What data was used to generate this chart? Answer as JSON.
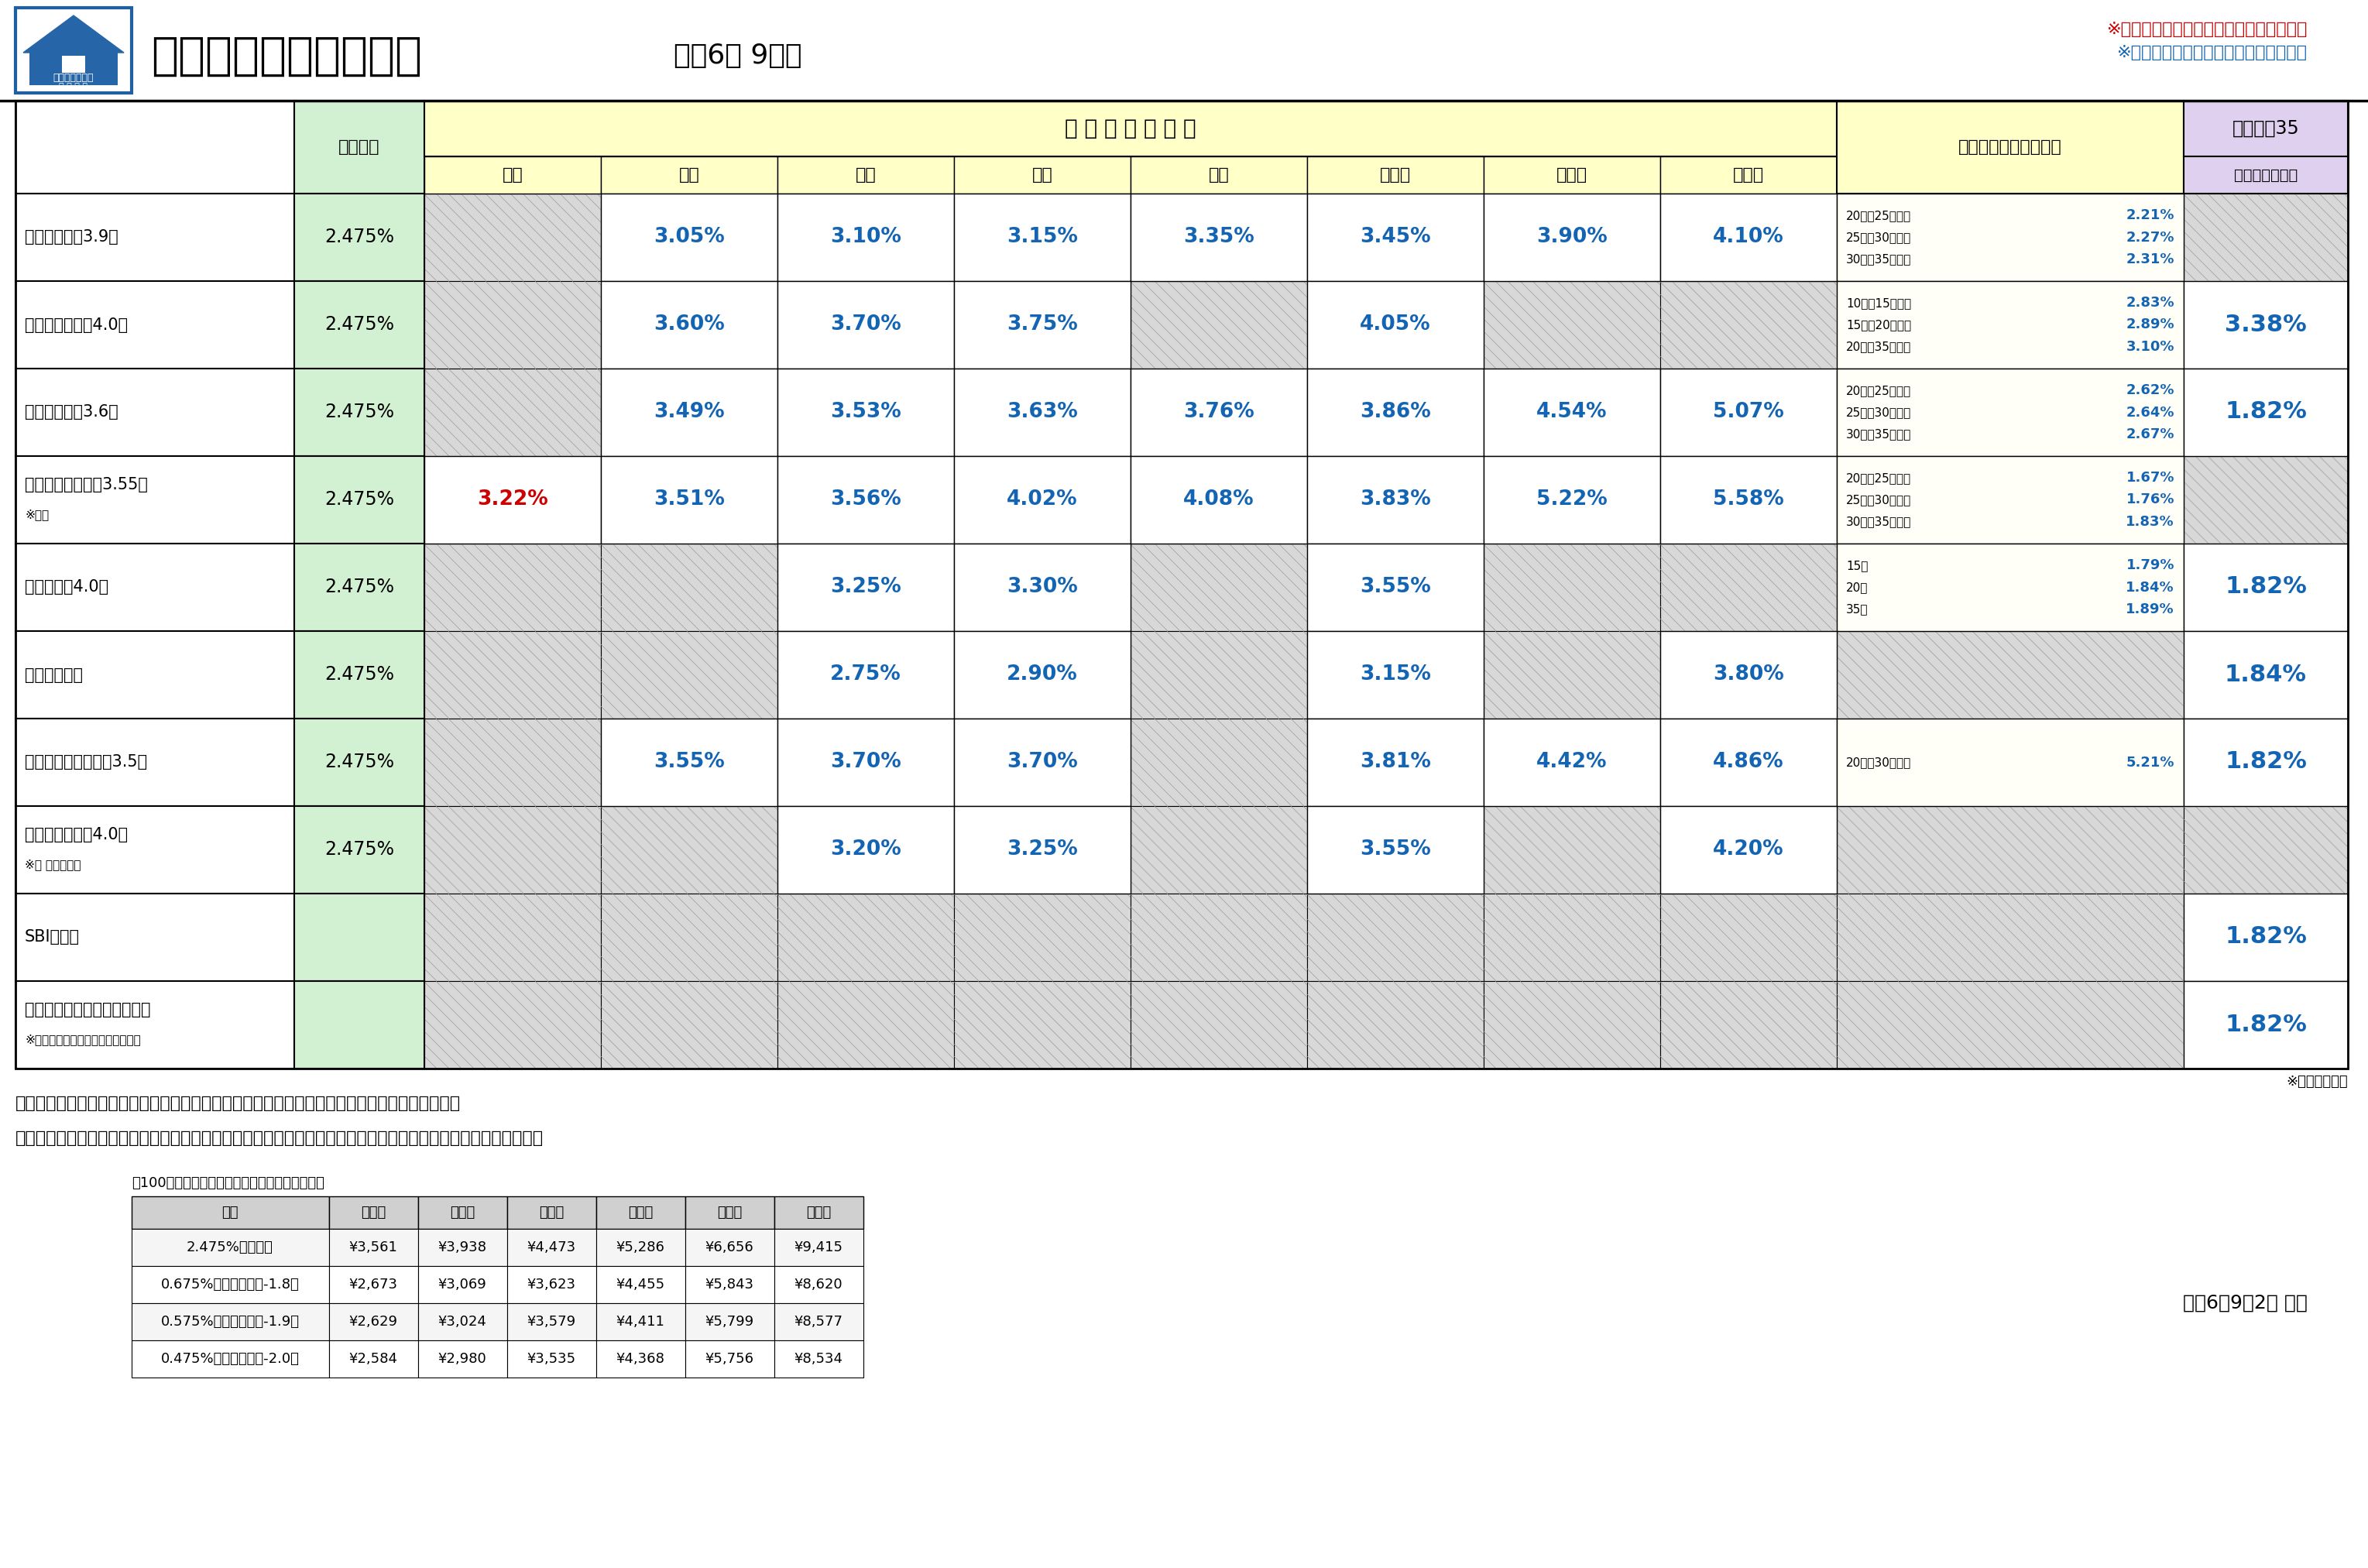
{
  "title": "住宅ローン金利一覧表",
  "subtitle": "令和6年 9月度",
  "note_red": "※赤文字は前月より上昇している金利です",
  "note_blue": "※青文字は前月より下げている金利です",
  "footer_note": "※団信加入金利",
  "bottom_note1": "＊上記記載内容は、基準金利です。金利優遇など、詳細については、担当者にご確認ください。",
  "bottom_note2": "　また、上記金利は変更になる場合もございますので、詳細につきましては各金融機関にお問い合わせください。",
  "date_note": "令和6年9月2日 現在",
  "payment_table_note": "＊100万円お借入した場合の月々のお支払い金額",
  "banks": [
    {
      "name": "みずほ銀行（3.9）",
      "sub": "",
      "variable": "2.475%",
      "fixed": {
        "1y": "",
        "2y": "3.05%",
        "3y": "3.10%",
        "5y": "3.15%",
        "7y": "3.35%",
        "10y": "3.45%",
        "15y": "3.90%",
        "20y": "4.10%"
      },
      "long_fixed_lines": [
        {
          "label": "20年超25年以内",
          "value": "2.21%"
        },
        {
          "label": "25年超30年以内",
          "value": "2.27%"
        },
        {
          "label": "30年超35年以内",
          "value": "2.31%"
        }
      ],
      "flat35": ""
    },
    {
      "name": "三井住友銀行（4.0）",
      "sub": "",
      "variable": "2.475%",
      "fixed": {
        "1y": "",
        "2y": "3.60%",
        "3y": "3.70%",
        "5y": "3.75%",
        "7y": "",
        "10y": "4.05%",
        "15y": "",
        "20y": ""
      },
      "long_fixed_lines": [
        {
          "label": "10年超15年以内",
          "value": "2.83%"
        },
        {
          "label": "15年超20年以内",
          "value": "2.89%"
        },
        {
          "label": "20年超35年以内",
          "value": "3.10%"
        }
      ],
      "flat35": "3.38%"
    },
    {
      "name": "りそな銀行（3.6）",
      "sub": "",
      "variable": "2.475%",
      "fixed": {
        "1y": "",
        "2y": "3.49%",
        "3y": "3.53%",
        "5y": "3.63%",
        "7y": "3.76%",
        "10y": "3.86%",
        "15y": "4.54%",
        "20y": "5.07%"
      },
      "long_fixed_lines": [
        {
          "label": "20年超25年以内",
          "value": "2.62%"
        },
        {
          "label": "25年超30年以内",
          "value": "2.64%"
        },
        {
          "label": "30年超35年以内",
          "value": "2.67%"
        }
      ],
      "flat35": "1.82%"
    },
    {
      "name": "三菱ＵＦＪ銀行（3.55）",
      "sub": "※店頭",
      "variable": "2.475%",
      "fixed": {
        "1y": "3.22%",
        "2y": "3.51%",
        "3y": "3.56%",
        "5y": "4.02%",
        "7y": "4.08%",
        "10y": "3.83%",
        "15y": "5.22%",
        "20y": "5.58%"
      },
      "long_fixed_lines": [
        {
          "label": "20年超25年以内",
          "value": "1.67%"
        },
        {
          "label": "25年超30年以内",
          "value": "1.76%"
        },
        {
          "label": "30年超35年以内",
          "value": "1.83%"
        }
      ],
      "flat35": "",
      "1y_red": true
    },
    {
      "name": "横浜銀行（4.0）",
      "sub": "",
      "variable": "2.475%",
      "fixed": {
        "1y": "",
        "2y": "",
        "3y": "3.25%",
        "5y": "3.30%",
        "7y": "",
        "10y": "3.55%",
        "15y": "",
        "20y": ""
      },
      "long_fixed_lines": [
        {
          "label": "15年",
          "value": "1.79%"
        },
        {
          "label": "20年",
          "value": "1.84%"
        },
        {
          "label": "35年",
          "value": "1.89%"
        }
      ],
      "flat35": "1.82%"
    },
    {
      "name": "中央労働金庫",
      "sub": "",
      "variable": "2.475%",
      "fixed": {
        "1y": "",
        "2y": "",
        "3y": "2.75%",
        "5y": "2.90%",
        "7y": "",
        "10y": "3.15%",
        "15y": "",
        "20y": "3.80%"
      },
      "long_fixed_lines": [],
      "flat35": "1.84%"
    },
    {
      "name": "三井住友信託銀行（3.5）",
      "sub": "",
      "variable": "2.475%",
      "fixed": {
        "1y": "",
        "2y": "3.55%",
        "3y": "3.70%",
        "5y": "3.70%",
        "7y": "",
        "10y": "3.81%",
        "15y": "4.42%",
        "20y": "4.86%"
      },
      "long_fixed_lines": [
        {
          "label": "20年超30年以内",
          "value": "5.21%"
        }
      ],
      "flat35": "1.82%"
    },
    {
      "name": "きらぼし銀行（4.0）",
      "sub": "※旧 八千代銀行",
      "variable": "2.475%",
      "fixed": {
        "1y": "",
        "2y": "",
        "3y": "3.20%",
        "5y": "3.25%",
        "7y": "",
        "10y": "3.55%",
        "15y": "",
        "20y": "4.20%"
      },
      "long_fixed_lines": [],
      "flat35": ""
    },
    {
      "name": "SBIアルヒ",
      "sub": "",
      "variable": "",
      "fixed": {
        "1y": "",
        "2y": "",
        "3y": "",
        "5y": "",
        "7y": "",
        "10y": "",
        "15y": "",
        "20y": ""
      },
      "long_fixed_lines": [],
      "flat35": "1.82%"
    },
    {
      "name": "ハウス・デポ・パートナーズ",
      "sub": "※ヤマダホールディングスグループ",
      "variable": "",
      "fixed": {
        "1y": "",
        "2y": "",
        "3y": "",
        "5y": "",
        "7y": "",
        "10y": "",
        "15y": "",
        "20y": ""
      },
      "long_fixed_lines": [],
      "flat35": "1.82%"
    }
  ],
  "payment_table": {
    "headers": [
      "金利",
      "３５年",
      "３０年",
      "２５年",
      "２０年",
      "１５年",
      "１０年"
    ],
    "rows": [
      [
        "2.475%　の場合",
        "¥3,561",
        "¥3,938",
        "¥4,473",
        "¥5,286",
        "¥6,656",
        "¥9,415"
      ],
      [
        "0.675%　の場合　（-1.8）",
        "¥2,673",
        "¥3,069",
        "¥3,623",
        "¥4,455",
        "¥5,843",
        "¥8,620"
      ],
      [
        "0.575%　の場合　（-1.9）",
        "¥2,629",
        "¥3,024",
        "¥3,579",
        "¥4,411",
        "¥5,799",
        "¥8,577"
      ],
      [
        "0.475%　の場合　（-2.0）",
        "¥2,584",
        "¥2,980",
        "¥3,535",
        "¥4,368",
        "¥5,756",
        "¥8,534"
      ]
    ]
  },
  "colors": {
    "blue_text": "#1464b4",
    "red_text": "#cc0000",
    "black_text": "#000000",
    "green_bg": "#d9f0d9",
    "yellow_bg": "#fffff0",
    "purple_bg": "#e8d5f0",
    "hatch_bg": "#d8d8d8",
    "long_fixed_bg": "#fffff0"
  }
}
